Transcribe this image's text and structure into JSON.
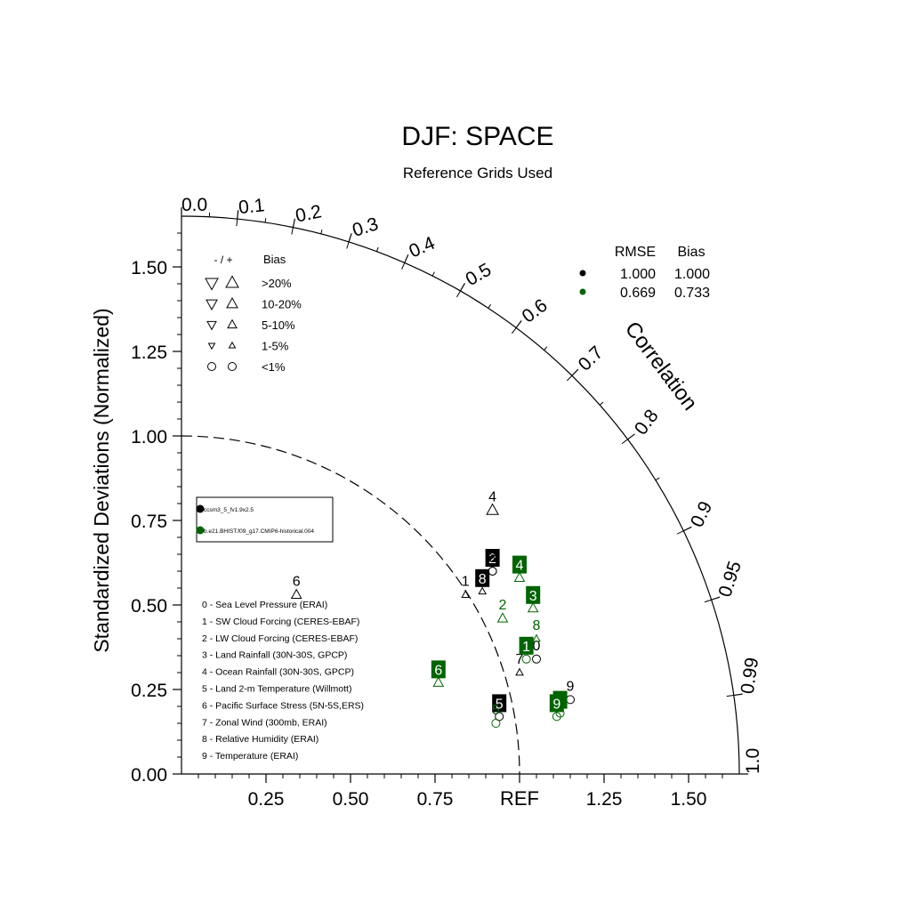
{
  "chart_data": {
    "type": "scatter",
    "title": "DJF: SPACE",
    "subtitle": "Reference Grids Used",
    "ylabel": "Standardized Deviations (Normalized)",
    "arc_label": "Correlation",
    "ref_label": "REF",
    "ylim": [
      0,
      1.65
    ],
    "xlim": [
      0,
      1.65
    ],
    "y_ticks": [
      "0.00",
      "0.25",
      "0.50",
      "0.75",
      "1.00",
      "1.25",
      "1.50"
    ],
    "x_ticks": [
      "0.25",
      "0.50",
      "0.75",
      "1.25",
      "1.50"
    ],
    "correlation_ticks": [
      "0.0",
      "0.1",
      "0.2",
      "0.3",
      "0.4",
      "0.5",
      "0.6",
      "0.7",
      "0.8",
      "0.9",
      "0.95",
      "0.99",
      "1.0"
    ],
    "bias_legend": {
      "header_signs": "- / +",
      "header_bias": "Bias",
      "rows": [
        ">20%",
        "10-20%",
        "5-10%",
        "1-5%",
        "<1%"
      ]
    },
    "stats_table": {
      "headers": [
        "RMSE",
        "Bias"
      ],
      "rows": [
        {
          "color": "#000000",
          "rmse": "1.000",
          "bias": "1.000"
        },
        {
          "color": "#006400",
          "rmse": "0.669",
          "bias": "0.733"
        }
      ]
    },
    "case_legend": [
      {
        "name": "ccsm3_5_fv1.9x2.5",
        "color": "#000000"
      },
      {
        "name": "b.e21.BHIST.f09_g17.CMIP6-historical.004",
        "color": "#006400"
      }
    ],
    "variables": [
      "0 - Sea Level Pressure (ERAI)",
      "1 - SW Cloud Forcing (CERES-EBAF)",
      "2 - LW Cloud Forcing (CERES-EBAF)",
      "3 - Land Rainfall (30N-30S, GPCP)",
      "4 - Ocean Rainfall (30N-30S, GPCP)",
      "5 - Land 2-m Temperature (Willmott)",
      "6 - Pacific Surface Stress (5N-5S,ERS)",
      "7 - Zonal Wind (300mb, ERAI)",
      "8 - Relative Humidity (ERAI)",
      "9 - Temperature (ERAI)"
    ],
    "series": [
      {
        "color": "#000000",
        "points": [
          {
            "label": "0",
            "x": 1.05,
            "y": 0.34,
            "marker": "circle",
            "boxed": false
          },
          {
            "label": "1",
            "x": 0.84,
            "y": 0.53,
            "marker": "tri-up-sm",
            "boxed": false
          },
          {
            "label": "2",
            "x": 0.92,
            "y": 0.6,
            "marker": "circle",
            "boxed": true
          },
          {
            "label": "3",
            "x": 0.92,
            "y": 0.6,
            "marker": "circle",
            "boxed": false
          },
          {
            "label": "4",
            "x": 0.92,
            "y": 0.78,
            "marker": "tri-up-lg",
            "boxed": false
          },
          {
            "label": "5",
            "x": 0.94,
            "y": 0.17,
            "marker": "circle",
            "boxed": true
          },
          {
            "label": "6",
            "x": 0.34,
            "y": 0.53,
            "marker": "tri-up-md",
            "boxed": false
          },
          {
            "label": "7",
            "x": 1.0,
            "y": 0.3,
            "marker": "tri-up-sm",
            "boxed": false
          },
          {
            "label": "8",
            "x": 0.89,
            "y": 0.54,
            "marker": "tri-up-sm",
            "boxed": true
          },
          {
            "label": "9",
            "x": 1.15,
            "y": 0.22,
            "marker": "circle",
            "boxed": false
          }
        ]
      },
      {
        "color": "#006400",
        "points": [
          {
            "label": "0",
            "x": 1.12,
            "y": 0.18,
            "marker": "circle",
            "boxed": true
          },
          {
            "label": "1",
            "x": 1.02,
            "y": 0.34,
            "marker": "circle",
            "boxed": true
          },
          {
            "label": "2",
            "x": 0.95,
            "y": 0.46,
            "marker": "tri-up-md",
            "boxed": false
          },
          {
            "label": "3",
            "x": 1.04,
            "y": 0.49,
            "marker": "tri-up-md",
            "boxed": true
          },
          {
            "label": "4",
            "x": 1.0,
            "y": 0.58,
            "marker": "tri-up-md",
            "boxed": true
          },
          {
            "label": "5",
            "x": 0.93,
            "y": 0.15,
            "marker": "circle",
            "boxed": false
          },
          {
            "label": "6",
            "x": 0.76,
            "y": 0.27,
            "marker": "tri-up-md",
            "boxed": true
          },
          {
            "label": "8",
            "x": 1.05,
            "y": 0.4,
            "marker": "tri-up-sm",
            "boxed": false
          },
          {
            "label": "9",
            "x": 1.11,
            "y": 0.17,
            "marker": "circle",
            "boxed": true
          }
        ]
      }
    ]
  }
}
